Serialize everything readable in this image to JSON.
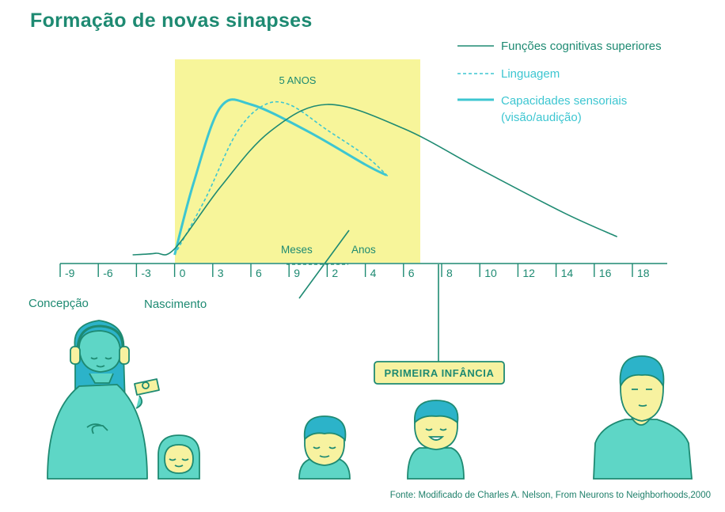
{
  "title": "Formação de novas sinapses",
  "source": "Fonte: Modificado de Charles A. Nelson, From Neurons to Neighborhoods,2000",
  "colors": {
    "dark_teal": "#1e8a72",
    "light_teal": "#3dc6d1",
    "highlight": "#f7f59a",
    "people": "#5ed6c6",
    "hair": "#2cb3c9",
    "badge_bg": "#f7f2a0"
  },
  "chart_data": {
    "type": "line",
    "title": "Formação de novas sinapses",
    "x_ticks": [
      "-9",
      "-6",
      "-3",
      "0",
      "3",
      "6",
      "9",
      "2",
      "4",
      "6",
      "8",
      "10",
      "12",
      "14",
      "16",
      "18"
    ],
    "x_unit_labels": [
      "Meses",
      "Anos"
    ],
    "highlight_label": "5 ANOS",
    "highlight_range_ticks": [
      3,
      8.5
    ],
    "x_annotations": [
      "Concepção",
      "Nascimento"
    ],
    "legend": [
      "Funções cognitivas superiores",
      "Linguagem",
      "Capacidades sensoriais (visão/audição)"
    ],
    "series": [
      {
        "name": "Capacidades sensoriais (visão/audição)",
        "style": "solid-thick",
        "color": "#3dc6d1",
        "points": [
          [
            3,
            0.0
          ],
          [
            3.5,
            0.48
          ],
          [
            4.2,
            0.98
          ],
          [
            5.0,
            1.0
          ],
          [
            6.5,
            0.82
          ],
          [
            8.0,
            0.6
          ],
          [
            8.55,
            0.53
          ]
        ]
      },
      {
        "name": "Linguagem",
        "style": "dashed",
        "color": "#3dc6d1",
        "points": [
          [
            3,
            0.0
          ],
          [
            3.8,
            0.37
          ],
          [
            4.6,
            0.8
          ],
          [
            5.3,
            0.99
          ],
          [
            6.0,
            1.0
          ],
          [
            7.0,
            0.83
          ],
          [
            8.0,
            0.66
          ],
          [
            8.6,
            0.52
          ]
        ]
      },
      {
        "name": "Funções cognitivas superiores",
        "style": "solid-thin",
        "color": "#1e8a72",
        "points": [
          [
            1.9,
            0.0
          ],
          [
            2.5,
            0.01
          ],
          [
            3.0,
            0.04
          ],
          [
            4.2,
            0.45
          ],
          [
            5.5,
            0.82
          ],
          [
            7.0,
            1.0
          ],
          [
            9.0,
            0.84
          ],
          [
            11.0,
            0.57
          ],
          [
            13.2,
            0.28
          ],
          [
            14.6,
            0.12
          ]
        ]
      }
    ],
    "badge": "PRIMEIRA INFÂNCIA"
  }
}
